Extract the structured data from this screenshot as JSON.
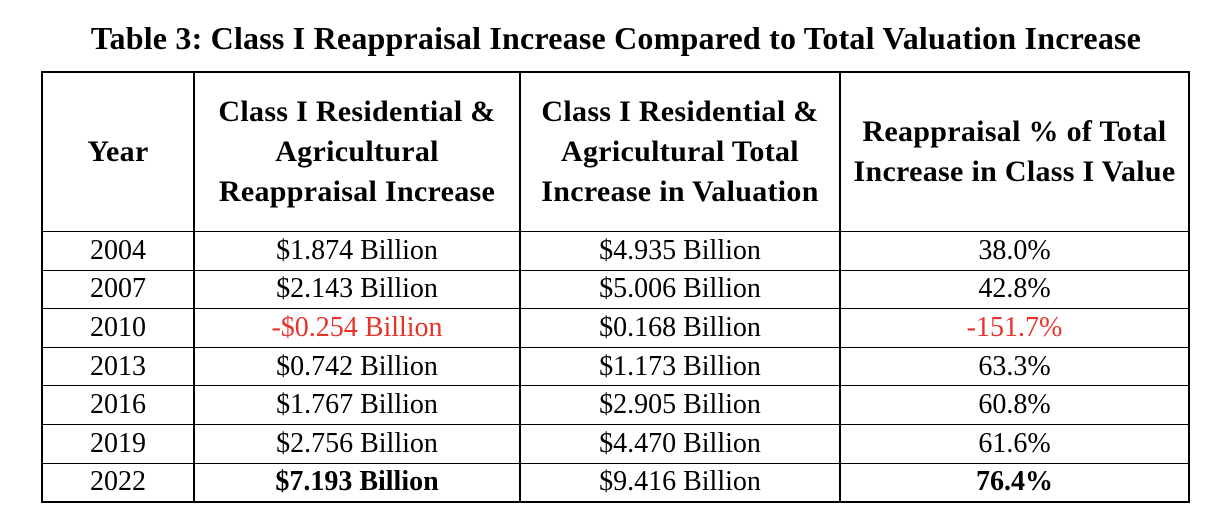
{
  "title": "Table 3: Class I Reappraisal Increase Compared to Total Valuation Increase",
  "colors": {
    "negative": "#e8322a",
    "text": "#000000",
    "border": "#000000"
  },
  "table": {
    "headers": [
      "Year",
      "Class I Residential & Agricultural Reappraisal Increase",
      "Class I Residential & Agricultural Total Increase in Valuation",
      "Reappraisal % of Total Increase in Class I Value"
    ],
    "rows": [
      {
        "year": "2004",
        "reappraisal": "$1.874 Billion",
        "total": "$4.935 Billion",
        "pct": "38.0%"
      },
      {
        "year": "2007",
        "reappraisal": "$2.143 Billion",
        "total": "$5.006 Billion",
        "pct": "42.8%"
      },
      {
        "year": "2010",
        "reappraisal": "-$0.254 Billion",
        "total": "$0.168 Billion",
        "pct": "-151.7%"
      },
      {
        "year": "2013",
        "reappraisal": "$0.742 Billion",
        "total": "$1.173 Billion",
        "pct": "63.3%"
      },
      {
        "year": "2016",
        "reappraisal": "$1.767 Billion",
        "total": "$2.905 Billion",
        "pct": "60.8%"
      },
      {
        "year": "2019",
        "reappraisal": "$2.756 Billion",
        "total": "$4.470 Billion",
        "pct": "61.6%"
      },
      {
        "year": "2022",
        "reappraisal": "$7.193 Billion",
        "total": "$9.416 Billion",
        "pct": "76.4%"
      }
    ]
  }
}
